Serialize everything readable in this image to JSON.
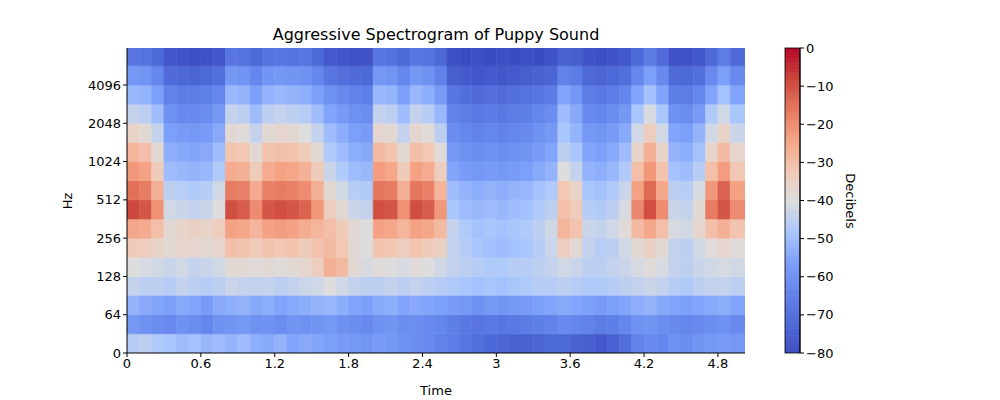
{
  "chart_data": {
    "type": "heatmap",
    "title": "Aggressive Spectrogram of Puppy Sound",
    "x_label": "Time",
    "y_label": "Hz",
    "log": "y",
    "xlim": [
      0,
      5.02
    ],
    "xticks": [
      0,
      0.6,
      1.2,
      1.8,
      2.4,
      3,
      3.6,
      4.2,
      4.8
    ],
    "ylim": [
      0,
      8000
    ],
    "yticks": [
      0,
      64,
      128,
      256,
      512,
      1024,
      2048,
      4096
    ],
    "time_edges": [
      0,
      0.1,
      0.2,
      0.3,
      0.4,
      0.5,
      0.6,
      0.7,
      0.8,
      0.9,
      1.0,
      1.1,
      1.2,
      1.3,
      1.4,
      1.5,
      1.6,
      1.7,
      1.8,
      1.9,
      2.0,
      2.1,
      2.2,
      2.3,
      2.4,
      2.5,
      2.6,
      2.7,
      2.8,
      2.9,
      3.0,
      3.1,
      3.2,
      3.3,
      3.4,
      3.5,
      3.6,
      3.7,
      3.8,
      3.9,
      4.0,
      4.1,
      4.2,
      4.3,
      4.4,
      4.5,
      4.6,
      4.7,
      4.8,
      4.9,
      5.02
    ],
    "freq_edges": [
      0,
      32,
      64,
      91,
      128,
      181,
      256,
      362,
      512,
      724,
      1024,
      1448,
      2048,
      2896,
      4096,
      5793,
      8000
    ],
    "cells": [
      [
        -46,
        -45,
        -47,
        -48,
        -50,
        -49,
        -51,
        -50,
        -52,
        -50,
        -53,
        -54,
        -52,
        -55,
        -54,
        -55,
        -56,
        -57,
        -58,
        -59,
        -57,
        -58,
        -60,
        -61,
        -62,
        -64,
        -66,
        -68,
        -70,
        -72,
        -73,
        -74,
        -74,
        -73,
        -72,
        -72,
        -74,
        -75,
        -76,
        -74,
        -70,
        -64,
        -62,
        -63,
        -60,
        -61,
        -59,
        -58,
        -57,
        -58
      ],
      [
        -58,
        -60,
        -61,
        -62,
        -60,
        -61,
        -63,
        -60,
        -59,
        -58,
        -60,
        -60,
        -61,
        -59,
        -60,
        -59,
        -58,
        -60,
        -61,
        -62,
        -60,
        -59,
        -61,
        -61,
        -62,
        -63,
        -65,
        -67,
        -68,
        -67,
        -68,
        -67,
        -66,
        -65,
        -64,
        -62,
        -63,
        -64,
        -66,
        -65,
        -63,
        -60,
        -59,
        -61,
        -62,
        -63,
        -62,
        -61,
        -60,
        -62
      ],
      [
        -52,
        -54,
        -55,
        -56,
        -54,
        -55,
        -57,
        -54,
        -53,
        -52,
        -54,
        -53,
        -55,
        -54,
        -53,
        -52,
        -51,
        -53,
        -55,
        -56,
        -54,
        -53,
        -55,
        -54,
        -55,
        -56,
        -57,
        -58,
        -60,
        -58,
        -59,
        -58,
        -57,
        -56,
        -55,
        -54,
        -55,
        -56,
        -57,
        -56,
        -55,
        -53,
        -52,
        -54,
        -55,
        -56,
        -55,
        -54,
        -53,
        -55
      ],
      [
        -44,
        -45,
        -45,
        -46,
        -44,
        -45,
        -46,
        -45,
        -43,
        -44,
        -44,
        -44,
        -45,
        -44,
        -43,
        -42,
        -40,
        -42,
        -44,
        -45,
        -45,
        -44,
        -45,
        -44,
        -45,
        -46,
        -47,
        -48,
        -49,
        -48,
        -49,
        -48,
        -47,
        -46,
        -46,
        -45,
        -46,
        -47,
        -47,
        -46,
        -45,
        -44,
        -43,
        -44,
        -46,
        -47,
        -45,
        -44,
        -44,
        -45
      ],
      [
        -40,
        -41,
        -42,
        -43,
        -42,
        -44,
        -43,
        -42,
        -38,
        -38,
        -39,
        -38,
        -39,
        -38,
        -37,
        -34,
        -27,
        -29,
        -38,
        -41,
        -39,
        -40,
        -41,
        -39,
        -40,
        -42,
        -44,
        -45,
        -46,
        -47,
        -47,
        -46,
        -46,
        -45,
        -44,
        -42,
        -43,
        -45,
        -45,
        -44,
        -43,
        -41,
        -39,
        -41,
        -44,
        -45,
        -43,
        -42,
        -41,
        -42
      ],
      [
        -33,
        -34,
        -36,
        -38,
        -37,
        -37,
        -38,
        -37,
        -30,
        -31,
        -33,
        -31,
        -32,
        -31,
        -33,
        -31,
        -29,
        -32,
        -38,
        -40,
        -31,
        -32,
        -34,
        -31,
        -33,
        -35,
        -44,
        -46,
        -48,
        -49,
        -50,
        -49,
        -48,
        -46,
        -43,
        -34,
        -38,
        -44,
        -46,
        -45,
        -42,
        -38,
        -35,
        -38,
        -44,
        -45,
        -42,
        -39,
        -37,
        -39
      ],
      [
        -25,
        -26,
        -30,
        -38,
        -36,
        -35,
        -36,
        -34,
        -24,
        -25,
        -28,
        -24,
        -23,
        -24,
        -26,
        -28,
        -30,
        -33,
        -38,
        -40,
        -24,
        -25,
        -28,
        -24,
        -25,
        -29,
        -44,
        -47,
        -49,
        -48,
        -49,
        -48,
        -47,
        -45,
        -42,
        -28,
        -31,
        -43,
        -44,
        -42,
        -39,
        -29,
        -25,
        -30,
        -41,
        -42,
        -37,
        -30,
        -27,
        -31
      ],
      [
        -9,
        -11,
        -21,
        -42,
        -43,
        -44,
        -43,
        -40,
        -10,
        -12,
        -20,
        -11,
        -10,
        -11,
        -13,
        -22,
        -34,
        -38,
        -43,
        -44,
        -10,
        -11,
        -21,
        -10,
        -12,
        -22,
        -48,
        -50,
        -51,
        -50,
        -51,
        -50,
        -49,
        -47,
        -45,
        -30,
        -33,
        -46,
        -47,
        -45,
        -41,
        -19,
        -10,
        -20,
        -43,
        -44,
        -38,
        -17,
        -11,
        -20
      ],
      [
        -15,
        -17,
        -27,
        -45,
        -46,
        -47,
        -46,
        -42,
        -17,
        -18,
        -26,
        -18,
        -17,
        -18,
        -20,
        -27,
        -38,
        -42,
        -46,
        -47,
        -16,
        -17,
        -27,
        -16,
        -18,
        -28,
        -50,
        -52,
        -53,
        -52,
        -53,
        -52,
        -51,
        -49,
        -47,
        -32,
        -36,
        -48,
        -49,
        -47,
        -43,
        -24,
        -14,
        -25,
        -45,
        -46,
        -41,
        -22,
        -13,
        -24
      ],
      [
        -22,
        -24,
        -33,
        -50,
        -51,
        -52,
        -51,
        -47,
        -26,
        -27,
        -33,
        -26,
        -24,
        -25,
        -27,
        -33,
        -43,
        -47,
        -50,
        -51,
        -23,
        -25,
        -33,
        -24,
        -26,
        -34,
        -55,
        -57,
        -58,
        -57,
        -58,
        -57,
        -56,
        -54,
        -52,
        -40,
        -44,
        -52,
        -53,
        -51,
        -47,
        -30,
        -22,
        -31,
        -49,
        -50,
        -46,
        -30,
        -23,
        -32
      ],
      [
        -28,
        -30,
        -38,
        -53,
        -54,
        -55,
        -54,
        -50,
        -31,
        -32,
        -38,
        -31,
        -30,
        -31,
        -33,
        -38,
        -47,
        -50,
        -53,
        -54,
        -29,
        -31,
        -38,
        -30,
        -32,
        -39,
        -58,
        -60,
        -61,
        -60,
        -61,
        -60,
        -59,
        -57,
        -55,
        -45,
        -48,
        -55,
        -56,
        -54,
        -50,
        -36,
        -27,
        -36,
        -52,
        -53,
        -49,
        -36,
        -29,
        -37
      ],
      [
        -36,
        -38,
        -44,
        -56,
        -57,
        -58,
        -57,
        -54,
        -38,
        -39,
        -44,
        -38,
        -37,
        -38,
        -40,
        -44,
        -50,
        -53,
        -56,
        -57,
        -37,
        -38,
        -44,
        -37,
        -39,
        -45,
        -61,
        -63,
        -64,
        -63,
        -64,
        -63,
        -62,
        -60,
        -58,
        -48,
        -52,
        -58,
        -59,
        -57,
        -54,
        -42,
        -34,
        -42,
        -55,
        -56,
        -52,
        -42,
        -36,
        -43
      ],
      [
        -44,
        -45,
        -50,
        -60,
        -62,
        -62,
        -61,
        -58,
        -44,
        -45,
        -50,
        -45,
        -44,
        -45,
        -46,
        -50,
        -55,
        -57,
        -60,
        -61,
        -44,
        -45,
        -50,
        -44,
        -46,
        -51,
        -64,
        -66,
        -67,
        -66,
        -67,
        -66,
        -65,
        -63,
        -61,
        -50,
        -54,
        -62,
        -63,
        -61,
        -58,
        -48,
        -41,
        -48,
        -60,
        -61,
        -57,
        -47,
        -42,
        -48
      ],
      [
        -51,
        -52,
        -56,
        -64,
        -66,
        -66,
        -65,
        -63,
        -51,
        -52,
        -56,
        -52,
        -51,
        -52,
        -53,
        -56,
        -60,
        -62,
        -64,
        -65,
        -51,
        -52,
        -56,
        -51,
        -53,
        -57,
        -68,
        -70,
        -71,
        -70,
        -71,
        -70,
        -69,
        -68,
        -66,
        -55,
        -58,
        -66,
        -67,
        -66,
        -63,
        -55,
        -49,
        -55,
        -65,
        -66,
        -63,
        -55,
        -49,
        -55
      ],
      [
        -58,
        -59,
        -63,
        -71,
        -72,
        -73,
        -72,
        -70,
        -58,
        -59,
        -63,
        -59,
        -58,
        -59,
        -60,
        -63,
        -68,
        -70,
        -71,
        -72,
        -58,
        -59,
        -63,
        -58,
        -60,
        -64,
        -75,
        -76,
        -77,
        -76,
        -77,
        -76,
        -75,
        -74,
        -73,
        -64,
        -66,
        -72,
        -73,
        -72,
        -70,
        -63,
        -56,
        -62,
        -71,
        -72,
        -70,
        -62,
        -56,
        -62
      ],
      [
        -68,
        -69,
        -72,
        -77,
        -78,
        -79,
        -78,
        -77,
        -68,
        -69,
        -72,
        -69,
        -68,
        -69,
        -68,
        -72,
        -76,
        -77,
        -78,
        -78,
        -68,
        -69,
        -72,
        -68,
        -69,
        -72,
        -79,
        -80,
        -79,
        -80,
        -79,
        -80,
        -79,
        -80,
        -78,
        -74,
        -75,
        -78,
        -79,
        -78,
        -77,
        -72,
        -66,
        -71,
        -78,
        -78,
        -77,
        -72,
        -66,
        -71
      ]
    ],
    "colorbar": {
      "label": "Decibels",
      "range": [
        -80,
        0
      ],
      "ticks": [
        0,
        {
          "value": -10,
          "label": "−10"
        },
        {
          "value": -20,
          "label": "−20"
        },
        {
          "value": -30,
          "label": "−30"
        },
        {
          "value": -40,
          "label": "−40"
        },
        {
          "value": -50,
          "label": "−50"
        },
        {
          "value": -60,
          "label": "−60"
        },
        {
          "value": -70,
          "label": "−70"
        },
        {
          "value": -80,
          "label": "−80"
        }
      ]
    }
  }
}
